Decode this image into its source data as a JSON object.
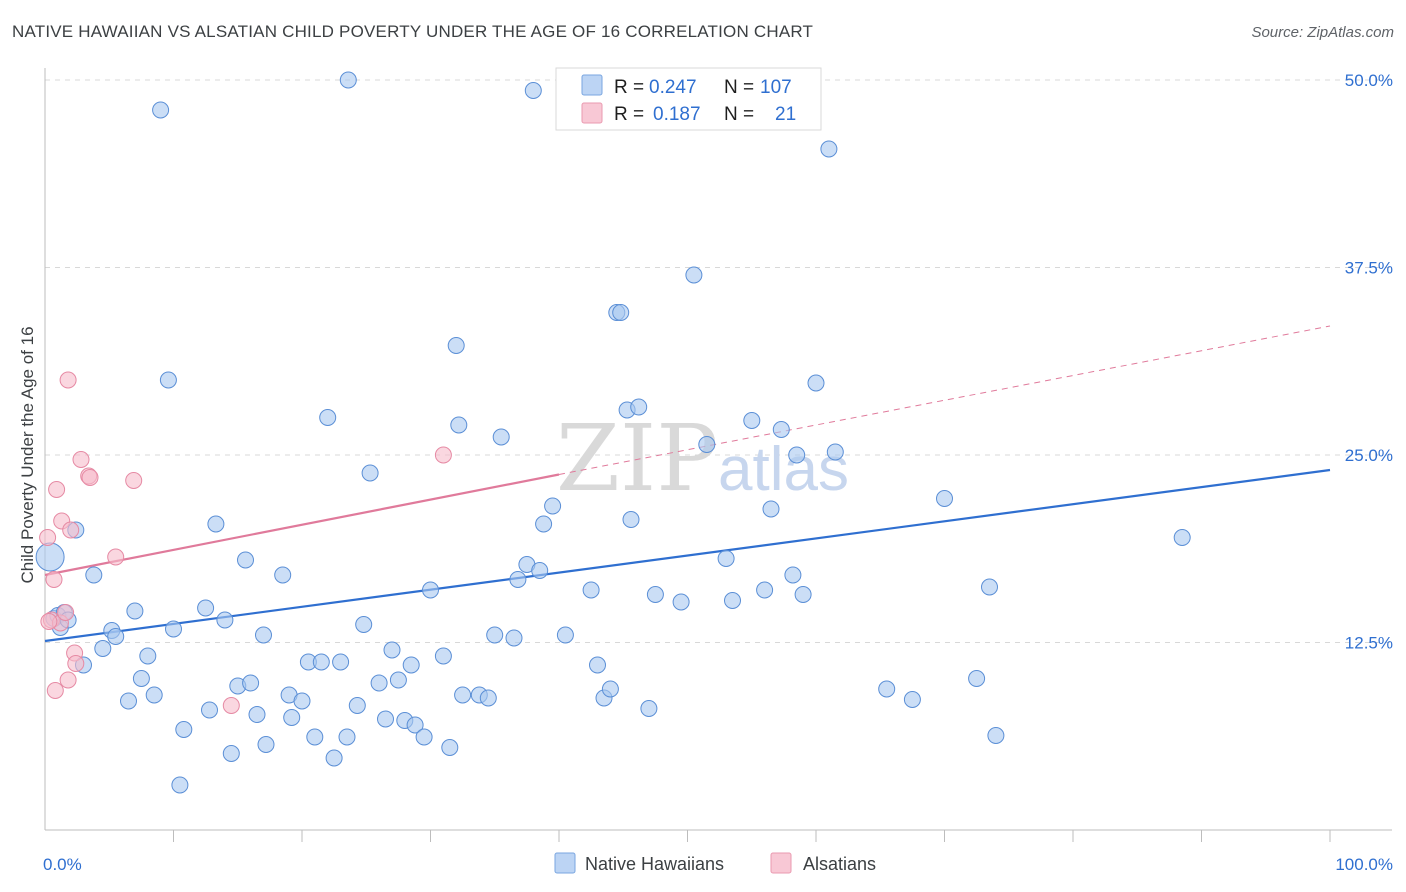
{
  "header": {
    "title": "NATIVE HAWAIIAN VS ALSATIAN CHILD POVERTY UNDER THE AGE OF 16 CORRELATION CHART",
    "source": "Source: ZipAtlas.com"
  },
  "watermark": {
    "zip": "ZIP",
    "atlas": "atlas"
  },
  "colors": {
    "blue_fill": "#a8c8f0",
    "blue_stroke": "#5b8fd6",
    "blue_line": "#2f6fd0",
    "pink_fill": "#f6bccb",
    "pink_stroke": "#e68aa4",
    "pink_line": "#e07a9b",
    "grid": "#d8d8d8",
    "tick_text": "#2f6fd0"
  },
  "legend": {
    "rows": [
      {
        "r_label": "R =",
        "r_value": "0.247",
        "n_label": "N =",
        "n_value": "107"
      },
      {
        "r_label": "R =",
        "r_value": "0.187",
        "n_label": "N =",
        "n_value": "21"
      }
    ]
  },
  "bottom_legend": {
    "items": [
      {
        "label": "Native Hawaiians"
      },
      {
        "label": "Alsatians"
      }
    ]
  },
  "chart_data": {
    "type": "scatter",
    "title": "NATIVE HAWAIIAN VS ALSATIAN CHILD POVERTY UNDER THE AGE OF 16 CORRELATION CHART",
    "xlabel": "",
    "ylabel": "Child Poverty Under the Age of 16",
    "xlim": [
      0,
      100
    ],
    "ylim": [
      0,
      50
    ],
    "x_tick_labels": [
      "0.0%",
      "100.0%"
    ],
    "y_ticks": [
      12.5,
      25.0,
      37.5,
      50.0
    ],
    "y_tick_labels": [
      "12.5%",
      "25.0%",
      "37.5%",
      "50.0%"
    ],
    "grid": true,
    "legend_position": "top-center",
    "series": [
      {
        "name": "Native Hawaiians",
        "R": 0.247,
        "N": 107,
        "trend": {
          "x": [
            0,
            100
          ],
          "y": [
            12.6,
            24.0
          ],
          "style": "solid"
        },
        "points": [
          [
            0.4,
            18.2
          ],
          [
            0.7,
            14.1
          ],
          [
            1.0,
            14.3
          ],
          [
            1.2,
            13.5
          ],
          [
            1.5,
            14.5
          ],
          [
            1.8,
            14.0
          ],
          [
            2.4,
            20.0
          ],
          [
            3.0,
            11.0
          ],
          [
            3.8,
            17.0
          ],
          [
            4.5,
            12.1
          ],
          [
            5.2,
            13.3
          ],
          [
            5.5,
            12.9
          ],
          [
            6.5,
            8.6
          ],
          [
            7.0,
            14.6
          ],
          [
            7.5,
            10.1
          ],
          [
            8.0,
            11.6
          ],
          [
            8.5,
            9.0
          ],
          [
            9.0,
            48.0
          ],
          [
            9.6,
            30.0
          ],
          [
            10.0,
            13.4
          ],
          [
            10.5,
            3.0
          ],
          [
            10.8,
            6.7
          ],
          [
            12.5,
            14.8
          ],
          [
            12.8,
            8.0
          ],
          [
            13.3,
            20.4
          ],
          [
            14.0,
            14.0
          ],
          [
            14.5,
            5.1
          ],
          [
            15.0,
            9.6
          ],
          [
            15.6,
            18.0
          ],
          [
            16.0,
            9.8
          ],
          [
            16.5,
            7.7
          ],
          [
            17.0,
            13.0
          ],
          [
            17.2,
            5.7
          ],
          [
            18.5,
            17.0
          ],
          [
            19.0,
            9.0
          ],
          [
            19.2,
            7.5
          ],
          [
            20.0,
            8.6
          ],
          [
            20.5,
            11.2
          ],
          [
            21.0,
            6.2
          ],
          [
            21.5,
            11.2
          ],
          [
            22.0,
            27.5
          ],
          [
            22.5,
            4.8
          ],
          [
            23.5,
            6.2
          ],
          [
            23.0,
            11.2
          ],
          [
            24.3,
            8.3
          ],
          [
            24.8,
            13.7
          ],
          [
            25.3,
            23.8
          ],
          [
            23.6,
            50.0
          ],
          [
            26.0,
            9.8
          ],
          [
            26.5,
            7.4
          ],
          [
            27.0,
            12.0
          ],
          [
            27.5,
            10.0
          ],
          [
            28.0,
            7.3
          ],
          [
            28.5,
            11.0
          ],
          [
            28.8,
            7.0
          ],
          [
            29.5,
            6.2
          ],
          [
            30.0,
            16.0
          ],
          [
            31.0,
            11.6
          ],
          [
            31.5,
            5.5
          ],
          [
            32.0,
            32.3
          ],
          [
            32.2,
            27.0
          ],
          [
            32.5,
            9.0
          ],
          [
            33.8,
            9.0
          ],
          [
            34.5,
            8.8
          ],
          [
            35.0,
            13.0
          ],
          [
            35.5,
            26.2
          ],
          [
            36.5,
            12.8
          ],
          [
            36.8,
            16.7
          ],
          [
            37.5,
            17.7
          ],
          [
            38.0,
            49.3
          ],
          [
            38.5,
            17.3
          ],
          [
            38.8,
            20.4
          ],
          [
            39.5,
            21.6
          ],
          [
            40.5,
            13.0
          ],
          [
            42.5,
            16.0
          ],
          [
            43.0,
            11.0
          ],
          [
            43.5,
            8.8
          ],
          [
            44.0,
            9.4
          ],
          [
            44.5,
            34.5
          ],
          [
            44.8,
            34.5
          ],
          [
            45.3,
            28.0
          ],
          [
            45.6,
            20.7
          ],
          [
            46.2,
            28.2
          ],
          [
            47.0,
            8.1
          ],
          [
            47.5,
            15.7
          ],
          [
            49.5,
            15.2
          ],
          [
            50.5,
            37.0
          ],
          [
            51.5,
            25.7
          ],
          [
            53.0,
            18.1
          ],
          [
            53.5,
            15.3
          ],
          [
            55.0,
            27.3
          ],
          [
            56.0,
            16.0
          ],
          [
            56.5,
            21.4
          ],
          [
            57.3,
            26.7
          ],
          [
            58.2,
            17.0
          ],
          [
            58.5,
            25.0
          ],
          [
            59.0,
            15.7
          ],
          [
            60.0,
            29.8
          ],
          [
            61.0,
            45.4
          ],
          [
            61.5,
            25.2
          ],
          [
            65.5,
            9.4
          ],
          [
            67.5,
            8.7
          ],
          [
            70.0,
            22.1
          ],
          [
            72.5,
            10.1
          ],
          [
            73.5,
            16.2
          ],
          [
            74.0,
            6.3
          ],
          [
            88.5,
            19.5
          ]
        ]
      },
      {
        "name": "Alsatians",
        "R": 0.187,
        "N": 21,
        "trend": {
          "x": [
            0,
            40
          ],
          "y": [
            17.0,
            23.7
          ],
          "style": "solid",
          "extended": {
            "x": [
              40,
              100
            ],
            "y": [
              23.7,
              33.6
            ],
            "style": "dashed"
          }
        },
        "points": [
          [
            0.2,
            19.5
          ],
          [
            0.5,
            14.0
          ],
          [
            0.7,
            16.7
          ],
          [
            0.8,
            9.3
          ],
          [
            0.9,
            22.7
          ],
          [
            1.2,
            13.8
          ],
          [
            1.3,
            20.6
          ],
          [
            1.6,
            14.5
          ],
          [
            1.8,
            10.0
          ],
          [
            1.8,
            30.0
          ],
          [
            2.0,
            20.0
          ],
          [
            2.3,
            11.8
          ],
          [
            2.4,
            11.1
          ],
          [
            2.8,
            24.7
          ],
          [
            3.4,
            23.6
          ],
          [
            3.5,
            23.5
          ],
          [
            5.5,
            18.2
          ],
          [
            6.9,
            23.3
          ],
          [
            14.5,
            8.3
          ],
          [
            31.0,
            25.0
          ],
          [
            0.3,
            13.9
          ]
        ]
      }
    ]
  }
}
